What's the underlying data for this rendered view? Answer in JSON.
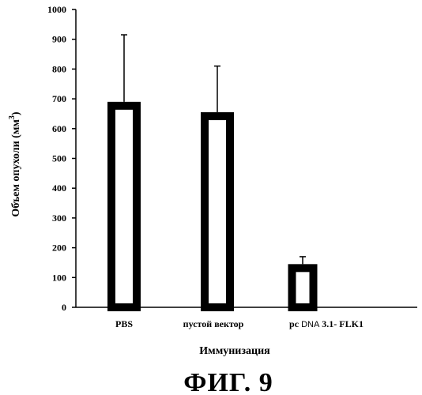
{
  "chart_data": {
    "type": "bar",
    "categories": [
      "PBS",
      "пустой вектор",
      "pcDNA 3.1- FLK1"
    ],
    "category_parts": [
      [
        {
          "text": "PBS",
          "small": false
        }
      ],
      [
        {
          "text": "пустой вектор",
          "small": false
        }
      ],
      [
        {
          "text": "pc",
          "small": false
        },
        {
          "text": " DNA",
          "small": true
        },
        {
          "text": " 3.1- FLK1",
          "small": false
        }
      ]
    ],
    "values": [
      690,
      655,
      145
    ],
    "error_upper": [
      915,
      810,
      170
    ],
    "ylim": [
      0,
      1000
    ],
    "yticks": [
      0,
      100,
      200,
      300,
      400,
      500,
      600,
      700,
      800,
      900,
      1000
    ],
    "xlabel": "Иммунизация",
    "ylabel_main": "Объем опухоли (мм",
    "ylabel_sup": "3",
    "ylabel_end": ")",
    "bar_style": "hollow-thick-outline",
    "grid": false,
    "legend": "none"
  },
  "caption": "ФИГ. 9"
}
